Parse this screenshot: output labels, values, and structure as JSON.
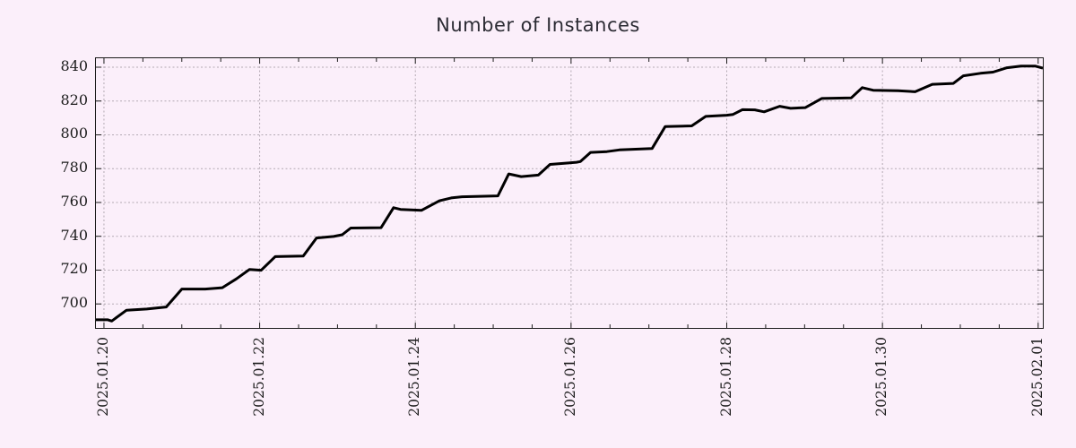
{
  "colors": {
    "background": "#fbeffa",
    "grid": "#b3a9b3",
    "axis": "#1c1c1c",
    "line": "#000000",
    "title_text": "#2b2b33"
  },
  "chart_data": {
    "type": "line",
    "title": "Number of Instances",
    "xlabel": "",
    "ylabel": "",
    "grid": true,
    "legend": "none",
    "x_axis": {
      "kind": "date",
      "tick_labels": [
        "2025.01.20",
        "2025.01.22",
        "2025.01.24",
        "2025.01.26",
        "2025.01.28",
        "2025.01.30",
        "2025.02.01"
      ],
      "tick_positions_days": [
        0,
        2,
        4,
        6,
        8,
        10,
        12
      ],
      "minor_tick_step_days": 0.5,
      "lim_days": [
        -0.103,
        12.06
      ],
      "label_rotation_deg": 90
    },
    "y_axis": {
      "ticks": [
        700,
        720,
        740,
        760,
        780,
        800,
        820,
        840
      ],
      "lim": [
        685.8,
        845.3
      ]
    },
    "series": [
      {
        "name": "instances",
        "color": "#000000",
        "points": [
          [
            -0.103,
            690.6
          ],
          [
            0.05,
            690.6
          ],
          [
            0.1,
            689.9
          ],
          [
            0.29,
            696.3
          ],
          [
            0.55,
            697.0
          ],
          [
            0.8,
            698.2
          ],
          [
            1.0,
            708.8
          ],
          [
            1.3,
            708.8
          ],
          [
            1.52,
            709.6
          ],
          [
            1.7,
            714.8
          ],
          [
            1.87,
            720.4
          ],
          [
            2.02,
            719.9
          ],
          [
            2.2,
            728.0
          ],
          [
            2.56,
            728.3
          ],
          [
            2.73,
            739.0
          ],
          [
            2.95,
            739.9
          ],
          [
            3.06,
            740.9
          ],
          [
            3.17,
            744.9
          ],
          [
            3.56,
            745.1
          ],
          [
            3.72,
            756.9
          ],
          [
            3.81,
            755.9
          ],
          [
            4.08,
            755.4
          ],
          [
            4.31,
            761.0
          ],
          [
            4.46,
            762.7
          ],
          [
            4.6,
            763.4
          ],
          [
            5.06,
            763.9
          ],
          [
            5.2,
            776.9
          ],
          [
            5.36,
            775.3
          ],
          [
            5.58,
            776.2
          ],
          [
            5.73,
            782.5
          ],
          [
            5.95,
            783.3
          ],
          [
            6.07,
            783.8
          ],
          [
            6.12,
            784.2
          ],
          [
            6.25,
            789.6
          ],
          [
            6.46,
            790.1
          ],
          [
            6.62,
            791.1
          ],
          [
            7.04,
            791.9
          ],
          [
            7.21,
            804.9
          ],
          [
            7.55,
            805.3
          ],
          [
            7.73,
            810.9
          ],
          [
            8.0,
            811.6
          ],
          [
            8.08,
            812.1
          ],
          [
            8.2,
            814.9
          ],
          [
            8.36,
            814.8
          ],
          [
            8.48,
            813.6
          ],
          [
            8.68,
            816.9
          ],
          [
            8.82,
            815.7
          ],
          [
            9.01,
            816.1
          ],
          [
            9.22,
            821.5
          ],
          [
            9.6,
            821.9
          ],
          [
            9.74,
            827.9
          ],
          [
            9.88,
            826.4
          ],
          [
            10.2,
            826.1
          ],
          [
            10.42,
            825.5
          ],
          [
            10.64,
            829.9
          ],
          [
            10.91,
            830.4
          ],
          [
            11.04,
            834.9
          ],
          [
            11.26,
            836.4
          ],
          [
            11.42,
            837.1
          ],
          [
            11.6,
            839.7
          ],
          [
            11.78,
            840.7
          ],
          [
            11.96,
            840.7
          ],
          [
            12.06,
            839.4
          ]
        ]
      }
    ]
  }
}
